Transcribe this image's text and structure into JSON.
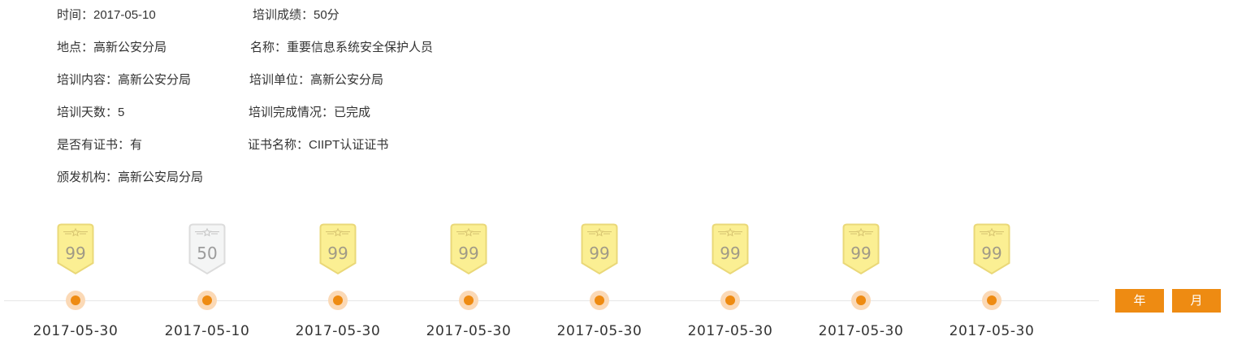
{
  "details": {
    "time": "时间：2017-05-10",
    "score": "培训成绩：50分",
    "location": "地点：高新公安分局",
    "name": "名称：重要信息系统安全保护人员",
    "content": "培训内容：高新公安分局",
    "unit": "培训单位：高新公安分局",
    "days": "培训天数：5",
    "completion": "培训完成情况：已完成",
    "has_certificate": "是否有证书：有",
    "certificate_name": "证书名称：CIIPT认证证书",
    "issuer": "颁发机构：高新公安局分局"
  },
  "timeline": {
    "items": [
      {
        "score": "99",
        "date": "2017-05-30",
        "badge": "gold"
      },
      {
        "score": "50",
        "date": "2017-05-10",
        "badge": "silver"
      },
      {
        "score": "99",
        "date": "2017-05-30",
        "badge": "gold"
      },
      {
        "score": "99",
        "date": "2017-05-30",
        "badge": "gold"
      },
      {
        "score": "99",
        "date": "2017-05-30",
        "badge": "gold"
      },
      {
        "score": "99",
        "date": "2017-05-30",
        "badge": "gold"
      },
      {
        "score": "99",
        "date": "2017-05-30",
        "badge": "gold"
      },
      {
        "score": "99",
        "date": "2017-05-30",
        "badge": "gold"
      }
    ]
  },
  "controls": {
    "year_label": "年",
    "month_label": "月"
  },
  "colors": {
    "accent": "#ee8b12",
    "node_halo": "#fbd9b6",
    "badge_gold_fill": "#fbef93",
    "badge_gold_stroke": "#ead878",
    "badge_silver_fill": "#f4f5f5",
    "badge_silver_stroke": "#dcdcdc"
  }
}
